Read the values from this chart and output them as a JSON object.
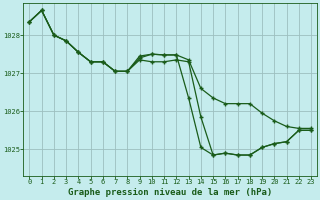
{
  "title": "Graphe pression niveau de la mer (hPa)",
  "bg_color": "#c5eced",
  "grid_color": "#9dbfbf",
  "line_color": "#1a5c1a",
  "x_ticks": [
    0,
    1,
    2,
    3,
    4,
    5,
    6,
    7,
    8,
    9,
    10,
    11,
    12,
    13,
    14,
    15,
    16,
    17,
    18,
    19,
    20,
    21,
    22,
    23
  ],
  "y_ticks": [
    1025,
    1026,
    1027,
    1028
  ],
  "ylim": [
    1024.3,
    1028.85
  ],
  "xlim": [
    -0.5,
    23.5
  ],
  "series1": [
    1028.35,
    1028.65,
    1028.0,
    1027.85,
    1027.55,
    1027.3,
    1027.3,
    1027.05,
    1027.05,
    1027.4,
    1027.5,
    1027.48,
    1027.48,
    1027.35,
    1026.6,
    1026.35,
    1026.2,
    1026.2,
    1026.2,
    1025.95,
    1025.75,
    1025.6,
    1025.55,
    1025.55
  ],
  "series2": [
    1028.35,
    1028.65,
    1028.0,
    1027.85,
    1027.55,
    1027.3,
    1027.3,
    1027.05,
    1027.05,
    1027.35,
    1027.3,
    1027.3,
    1027.35,
    1027.3,
    1025.85,
    1024.85,
    1024.9,
    1024.85,
    1024.85,
    1025.05,
    1025.15,
    1025.2,
    1025.5,
    1025.5
  ],
  "series3": [
    1028.35,
    1028.65,
    1028.0,
    1027.85,
    1027.55,
    1027.3,
    1027.3,
    1027.05,
    1027.05,
    1027.45,
    1027.5,
    1027.48,
    1027.48,
    1026.35,
    1025.05,
    1024.85,
    1024.9,
    1024.85,
    1024.85,
    1025.05,
    1025.15,
    1025.2,
    1025.5,
    1025.5
  ],
  "tick_fontsize": 5.0,
  "label_fontsize": 6.5
}
